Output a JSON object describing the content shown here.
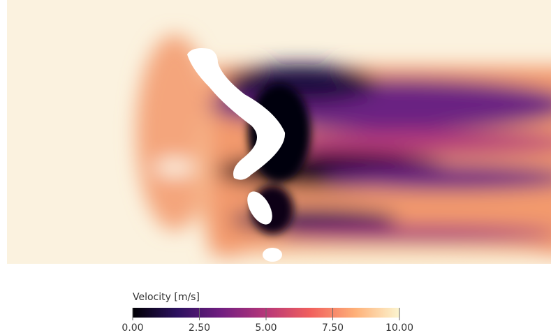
{
  "chart_data": {
    "type": "colorbar",
    "title": "Velocity [m/s]",
    "lim": [
      0,
      10
    ],
    "ticks": [
      {
        "value": 0,
        "label": "0.00"
      },
      {
        "value": 2.5,
        "label": "2.50"
      },
      {
        "value": 5,
        "label": "5.00"
      },
      {
        "value": 7.5,
        "label": "7.50"
      },
      {
        "value": 10,
        "label": "10.00"
      }
    ],
    "colormap": [
      "#000004",
      "#2c115f",
      "#721f81",
      "#b73779",
      "#f1605d",
      "#feb078",
      "#fcf5d0"
    ]
  }
}
